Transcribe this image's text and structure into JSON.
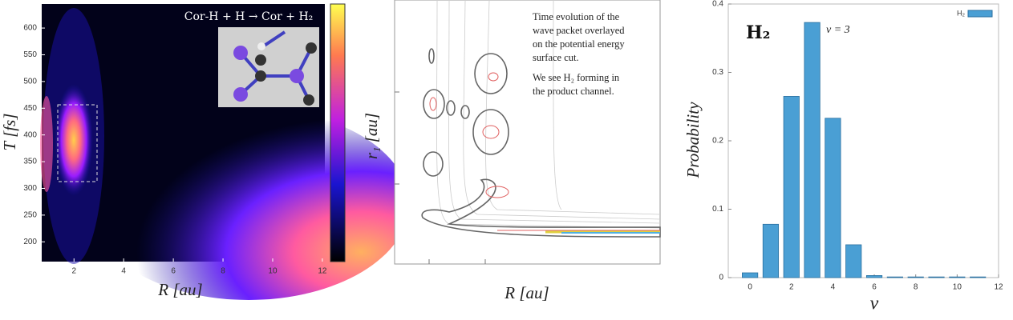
{
  "chart_data": [
    {
      "type": "heatmap",
      "title": "Cor-H + H → Cor + H₂",
      "xlabel": "R [au]",
      "ylabel": "T [fs]",
      "xlim": [
        0.7,
        12.1
      ],
      "xticks": [
        2,
        4,
        6,
        8,
        10,
        12
      ],
      "ylim": [
        163,
        645
      ],
      "yticks": [
        200,
        250,
        300,
        350,
        400,
        450,
        500,
        550,
        600
      ]
    },
    {
      "type": "contour",
      "xlabel": "R [au]",
      "ylabel": "r₁ [au]",
      "annotation": [
        "Time evolution of the",
        "wave packet overlayed",
        "on the potential energy",
        "surface cut.",
        "We see H₂ forming in",
        "the product channel."
      ]
    },
    {
      "type": "bar",
      "title": "H₂",
      "annotation": "ν = 3",
      "xlabel": "ν",
      "ylabel": "Probability",
      "x": [
        0,
        1,
        2,
        3,
        4,
        5,
        6,
        7,
        8,
        9,
        10,
        11
      ],
      "series": [
        {
          "name": "H₂",
          "color": "#4a9fd4",
          "values": [
            0.007,
            0.078,
            0.265,
            0.373,
            0.233,
            0.048,
            0.003,
            0.001,
            0.001,
            0.001,
            0.001,
            0.001
          ]
        }
      ],
      "xlim": [
        -1.05,
        12
      ],
      "xticks": [
        0,
        2,
        4,
        6,
        8,
        10,
        12
      ],
      "ylim": [
        0,
        0.4
      ],
      "yticks": [
        0,
        0.1,
        0.2,
        0.3,
        0.4
      ],
      "legend": "upper right"
    }
  ]
}
